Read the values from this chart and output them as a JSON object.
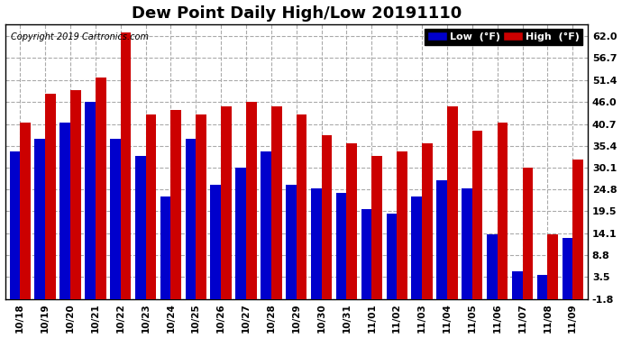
{
  "title": "Dew Point Daily High/Low 20191110",
  "copyright": "Copyright 2019 Cartronics.com",
  "dates": [
    "10/18",
    "10/19",
    "10/20",
    "10/21",
    "10/22",
    "10/23",
    "10/24",
    "10/25",
    "10/26",
    "10/27",
    "10/28",
    "10/29",
    "10/30",
    "10/31",
    "11/01",
    "11/02",
    "11/03",
    "11/04",
    "11/05",
    "11/06",
    "11/07",
    "11/08",
    "11/09"
  ],
  "low_values": [
    34,
    37,
    41,
    46,
    37,
    33,
    23,
    37,
    26,
    30,
    34,
    26,
    25,
    24,
    20,
    19,
    23,
    27,
    25,
    14,
    5,
    4,
    13
  ],
  "high_values": [
    41,
    48,
    49,
    52,
    63,
    43,
    44,
    43,
    45,
    46,
    45,
    43,
    38,
    36,
    33,
    34,
    36,
    45,
    39,
    41,
    30,
    14,
    32
  ],
  "low_color": "#0000cc",
  "high_color": "#cc0000",
  "background_color": "#ffffff",
  "yticks": [
    -1.8,
    3.5,
    8.8,
    14.1,
    19.5,
    24.8,
    30.1,
    35.4,
    40.7,
    46.0,
    51.4,
    56.7,
    62.0
  ],
  "ylim": [
    -1.8,
    65.0
  ],
  "title_fontsize": 13,
  "bar_width": 0.42
}
